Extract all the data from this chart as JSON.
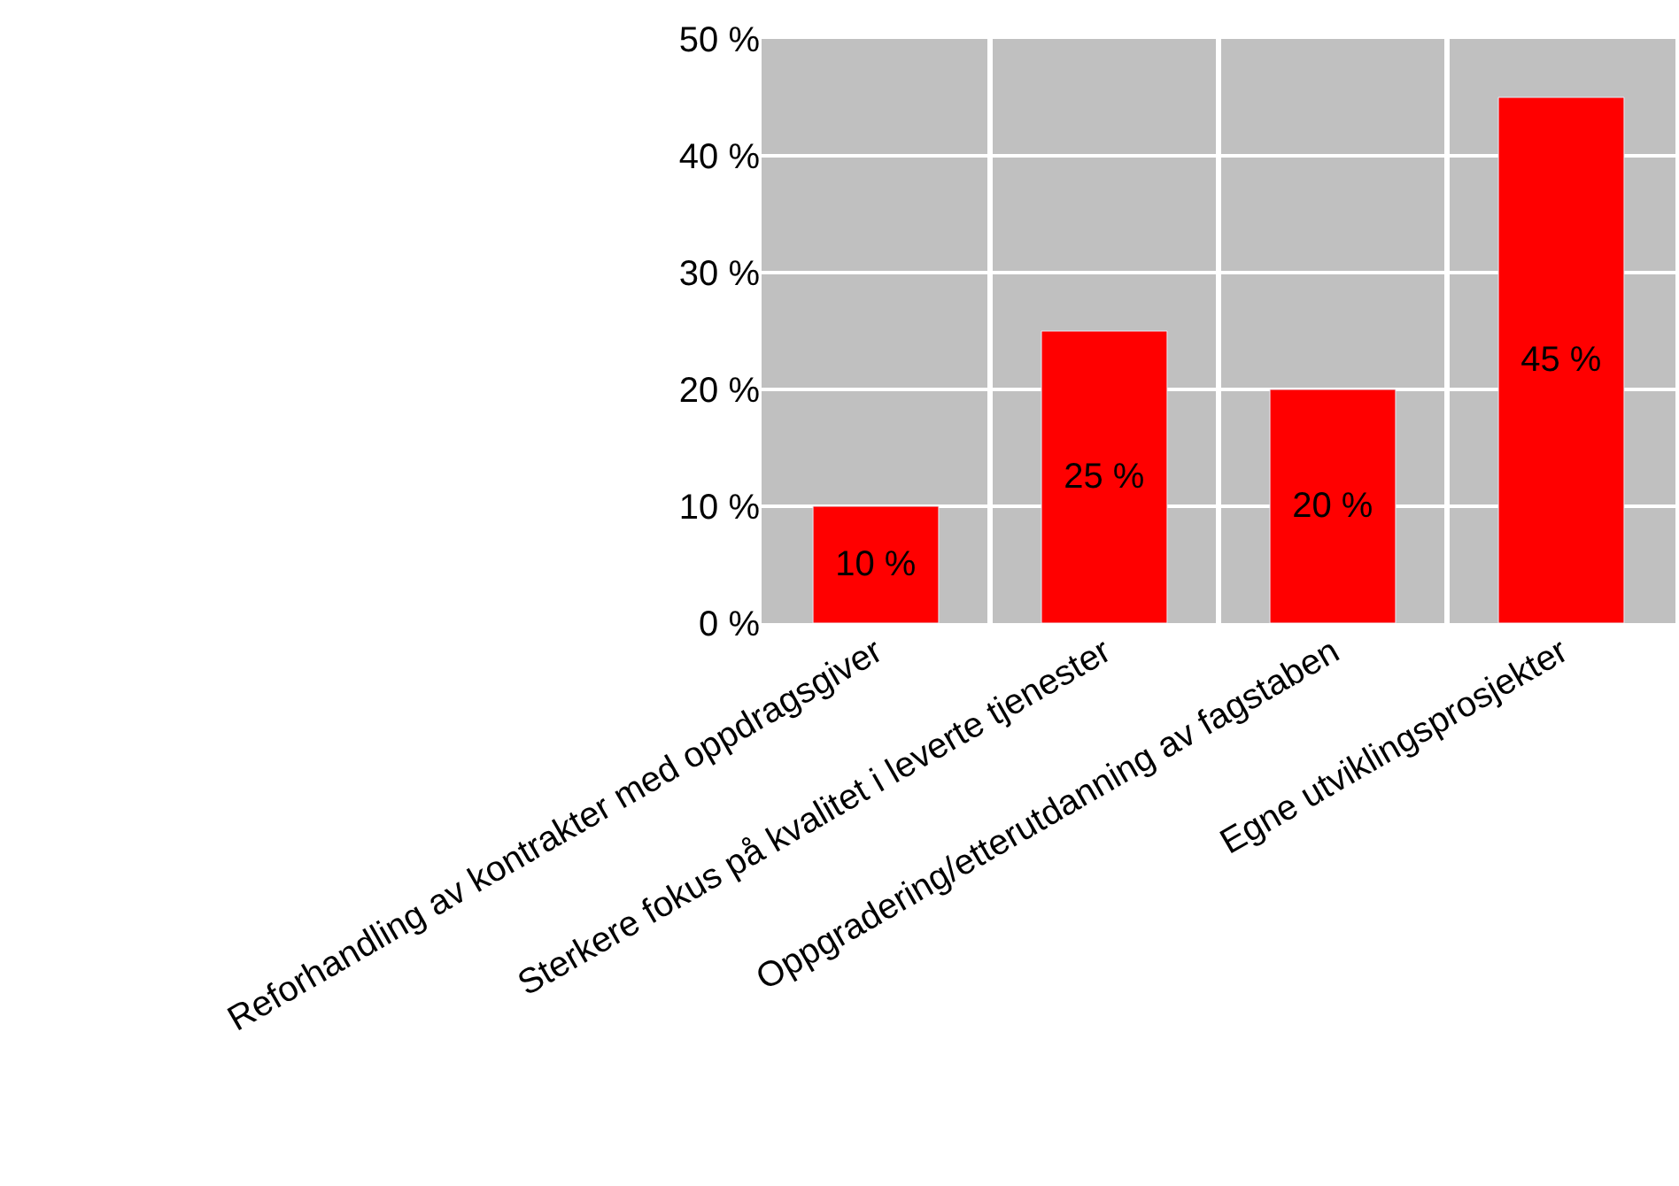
{
  "chart_data": {
    "type": "bar",
    "categories": [
      "Reforhandling av kontrakter med oppdragsgiver",
      "Sterkere fokus på kvalitet i leverte tjenester",
      "Oppgradering/etterutdanning av fagstaben",
      "Egne utviklingsprosjekter"
    ],
    "values": [
      10,
      25,
      20,
      45
    ],
    "value_labels": [
      "10 %",
      "25 %",
      "20 %",
      "45 %"
    ],
    "color": "#ff0000",
    "ylim": [
      0,
      50
    ],
    "yticks": [
      {
        "value": 0,
        "label": "0 %"
      },
      {
        "value": 10,
        "label": "10 %"
      },
      {
        "value": 20,
        "label": "20 %"
      },
      {
        "value": 30,
        "label": "30 %"
      },
      {
        "value": 40,
        "label": "40 %"
      },
      {
        "value": 50,
        "label": "50 %"
      }
    ],
    "grid": true
  }
}
